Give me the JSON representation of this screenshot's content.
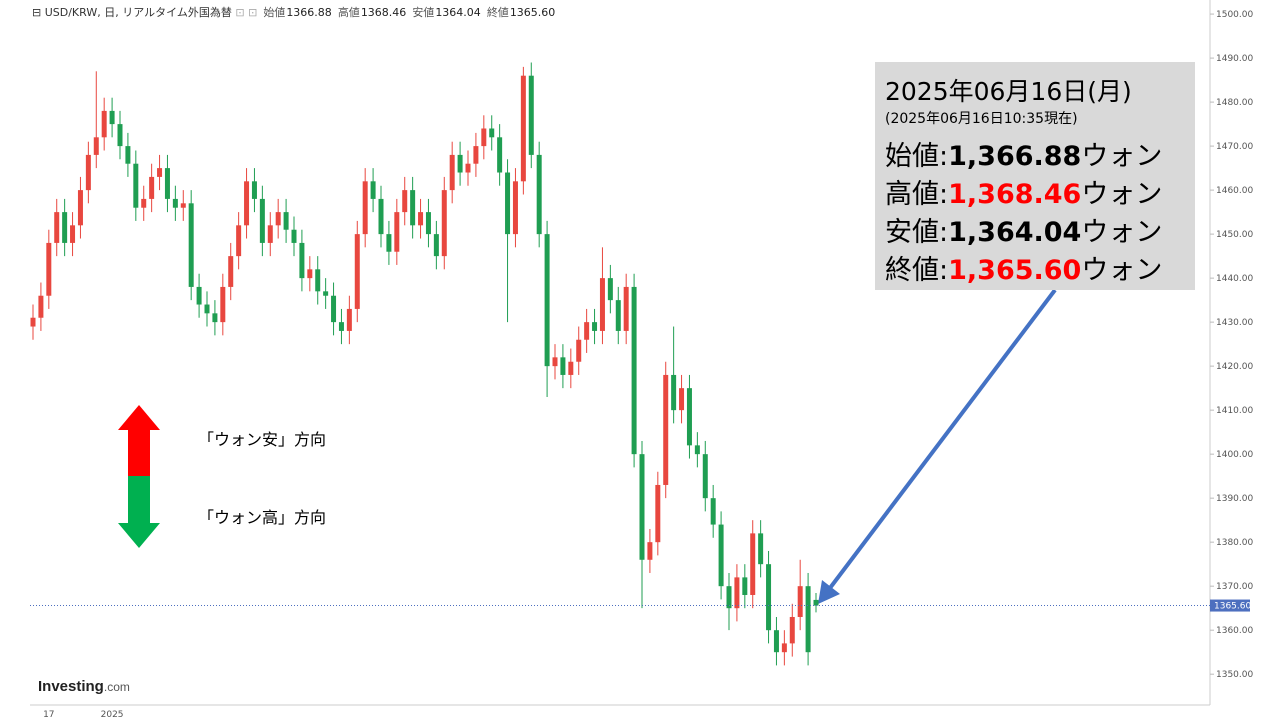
{
  "header": {
    "symbol": "USD/KRW, 日, リアルタイム外国為替",
    "fields": [
      {
        "label": "始値",
        "value": "1366.88"
      },
      {
        "label": "高値",
        "value": "1368.46"
      },
      {
        "label": "安値",
        "value": "1364.04"
      },
      {
        "label": "終値",
        "value": "1365.60"
      }
    ]
  },
  "info_box": {
    "date": "2025年06月16日(月)",
    "note": "(2025年06月16日10:35現在)",
    "rows": [
      {
        "label": "始値",
        "sep": ":",
        "value": "1,366.88",
        "unit": "ウォン",
        "color": "#000000"
      },
      {
        "label": "高値",
        "sep": ":",
        "value": "1,368.46",
        "unit": "ウォン",
        "color": "#ff0000"
      },
      {
        "label": "安値",
        "sep": ":",
        "value": "1,364.04",
        "unit": "ウォン",
        "color": "#000000"
      },
      {
        "label": "終値",
        "sep": ":",
        "value": "1,365.60",
        "unit": "ウォン",
        "color": "#ff0000"
      }
    ]
  },
  "legend": {
    "up": "「ウォン安」方向",
    "down": "「ウォン高」方向"
  },
  "logo": {
    "main": "Investing",
    "suffix": ".com"
  },
  "chart_data": {
    "type": "candlestick",
    "up_color": "#e8473f",
    "down_color": "#1f9e52",
    "categories": [
      null,
      null,
      "17",
      null,
      null,
      null,
      null,
      null,
      null,
      null,
      "2025",
      null,
      null,
      null,
      null,
      null,
      null,
      null,
      null,
      null,
      null,
      null,
      null,
      null,
      null,
      null,
      null,
      null,
      null,
      null,
      null,
      null,
      null,
      null,
      null,
      null,
      null,
      null,
      null,
      null,
      null,
      null,
      null,
      null,
      null,
      null,
      null,
      null,
      null,
      null,
      null,
      null,
      null,
      null,
      null,
      null,
      null,
      null,
      null,
      null,
      null,
      null,
      null,
      null,
      null,
      null,
      null,
      null,
      null,
      null,
      null,
      null,
      null,
      null,
      null,
      null,
      null,
      null,
      null,
      null,
      null,
      null,
      null,
      null,
      null,
      null,
      null,
      null,
      null,
      null,
      null,
      null,
      null,
      null,
      null,
      null,
      null,
      null,
      null,
      null
    ],
    "open": [
      1429,
      1431,
      1436,
      1448,
      1455,
      1448,
      1452,
      1460,
      1468,
      1472,
      1478,
      1475,
      1470,
      1466,
      1456,
      1458,
      1463,
      1465,
      1458,
      1456,
      1457,
      1438,
      1434,
      1432,
      1430,
      1438,
      1445,
      1452,
      1462,
      1458,
      1448,
      1452,
      1455,
      1451,
      1448,
      1440,
      1442,
      1437,
      1436,
      1430,
      1428,
      1433,
      1450,
      1462,
      1458,
      1450,
      1446,
      1455,
      1460,
      1452,
      1455,
      1450,
      1445,
      1460,
      1468,
      1464,
      1466,
      1470,
      1474,
      1472,
      1464,
      1450,
      1462,
      1486,
      1468,
      1450,
      1420,
      1422,
      1418,
      1421,
      1426,
      1430,
      1428,
      1440,
      1435,
      1428,
      1438,
      1400,
      1376,
      1380,
      1393,
      1418,
      1410,
      1415,
      1402,
      1400,
      1390,
      1384,
      1370,
      1365,
      1372,
      1368,
      1382,
      1375,
      1360,
      1355,
      1357,
      1363,
      1370,
      1366.88
    ],
    "high": [
      1434,
      1439,
      1451,
      1458,
      1458,
      1455,
      1463,
      1471,
      1487,
      1481,
      1481,
      1478,
      1473,
      1469,
      1461,
      1466,
      1468,
      1468,
      1461,
      1460,
      1460,
      1441,
      1437,
      1435,
      1441,
      1448,
      1455,
      1465,
      1465,
      1461,
      1455,
      1458,
      1458,
      1454,
      1451,
      1445,
      1445,
      1440,
      1439,
      1433,
      1436,
      1453,
      1465,
      1465,
      1461,
      1453,
      1458,
      1463,
      1463,
      1458,
      1458,
      1453,
      1463,
      1471,
      1471,
      1469,
      1473,
      1477,
      1477,
      1475,
      1467,
      1465,
      1488,
      1489,
      1471,
      1453,
      1425,
      1425,
      1424,
      1429,
      1433,
      1433,
      1447,
      1443,
      1438,
      1441,
      1441,
      1403,
      1383,
      1396,
      1421,
      1429,
      1418,
      1418,
      1405,
      1403,
      1393,
      1387,
      1373,
      1375,
      1375,
      1385,
      1385,
      1378,
      1363,
      1360,
      1366,
      1376,
      1373,
      1368.46
    ],
    "low": [
      1426,
      1428,
      1433,
      1445,
      1445,
      1445,
      1449,
      1457,
      1465,
      1469,
      1472,
      1467,
      1463,
      1453,
      1453,
      1455,
      1460,
      1455,
      1453,
      1453,
      1435,
      1431,
      1429,
      1427,
      1427,
      1435,
      1442,
      1449,
      1455,
      1445,
      1445,
      1449,
      1448,
      1445,
      1437,
      1437,
      1434,
      1433,
      1427,
      1425,
      1425,
      1430,
      1447,
      1455,
      1447,
      1443,
      1443,
      1452,
      1449,
      1449,
      1447,
      1442,
      1442,
      1457,
      1461,
      1461,
      1463,
      1467,
      1469,
      1461,
      1430,
      1447,
      1459,
      1465,
      1447,
      1413,
      1417,
      1415,
      1415,
      1418,
      1423,
      1425,
      1425,
      1432,
      1425,
      1425,
      1397,
      1365,
      1373,
      1377,
      1390,
      1407,
      1407,
      1399,
      1397,
      1387,
      1381,
      1367,
      1360,
      1362,
      1365,
      1365,
      1372,
      1357,
      1352,
      1352,
      1354,
      1360,
      1352,
      1364.04
    ],
    "close": [
      1431,
      1436,
      1448,
      1455,
      1448,
      1452,
      1460,
      1468,
      1472,
      1478,
      1475,
      1470,
      1466,
      1456,
      1458,
      1463,
      1465,
      1458,
      1456,
      1457,
      1438,
      1434,
      1432,
      1430,
      1438,
      1445,
      1452,
      1462,
      1458,
      1448,
      1452,
      1455,
      1451,
      1448,
      1440,
      1442,
      1437,
      1436,
      1430,
      1428,
      1433,
      1450,
      1462,
      1458,
      1450,
      1446,
      1455,
      1460,
      1452,
      1455,
      1450,
      1445,
      1460,
      1468,
      1464,
      1466,
      1470,
      1474,
      1472,
      1464,
      1450,
      1462,
      1486,
      1468,
      1450,
      1420,
      1422,
      1418,
      1421,
      1426,
      1430,
      1428,
      1440,
      1435,
      1428,
      1438,
      1400,
      1376,
      1380,
      1393,
      1418,
      1410,
      1415,
      1402,
      1400,
      1390,
      1384,
      1370,
      1365,
      1372,
      1368,
      1382,
      1375,
      1360,
      1355,
      1357,
      1363,
      1370,
      1355,
      1365.6
    ],
    "last_price": {
      "value": 1365.6,
      "label": "1365.60",
      "color": "#4d6fbf"
    },
    "ylim": [
      1343,
      1503.2
    ],
    "yticks": [
      {
        "value": 1350,
        "label": "1350.00"
      },
      {
        "value": 1360,
        "label": "1360.00"
      },
      {
        "value": 1370,
        "label": "1370.00"
      },
      {
        "value": 1380,
        "label": "1380.00"
      },
      {
        "value": 1390,
        "label": "1390.00"
      },
      {
        "value": 1400,
        "label": "1400.00"
      },
      {
        "value": 1410,
        "label": "1410.00"
      },
      {
        "value": 1420,
        "label": "1420.00"
      },
      {
        "value": 1430,
        "label": "1430.00"
      },
      {
        "value": 1440,
        "label": "1440.00"
      },
      {
        "value": 1450,
        "label": "1450.00"
      },
      {
        "value": 1460,
        "label": "1460.00"
      },
      {
        "value": 1470,
        "label": "1470.00"
      },
      {
        "value": 1480,
        "label": "1480.00"
      },
      {
        "value": 1490,
        "label": "1490.00"
      },
      {
        "value": 1500,
        "label": "1500.00"
      }
    ]
  }
}
